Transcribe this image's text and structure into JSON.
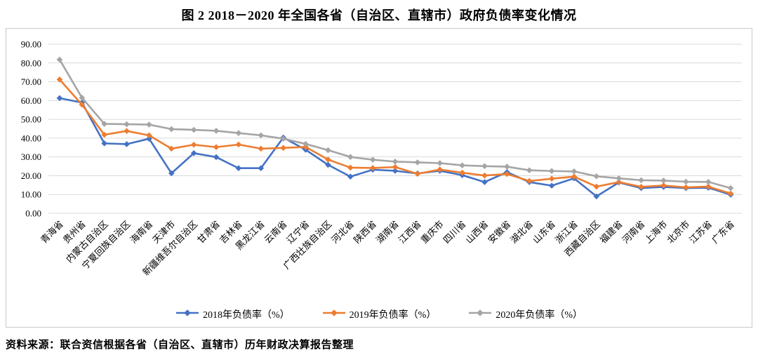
{
  "title": "图 2  2018－2020 年全国各省（自治区、直辖市）政府负债率变化情况",
  "source_note": "资料来源：联合资信根据各省（自治区、直辖市）历年财政决算报告整理",
  "chart_data": {
    "type": "line",
    "marker": "diamond",
    "grid": "horizontal",
    "legend_position": "bottom",
    "ylim": [
      0,
      90
    ],
    "ytick_step": 10,
    "ytick_labels": [
      "0.00",
      "10.00",
      "20.00",
      "30.00",
      "40.00",
      "50.00",
      "60.00",
      "70.00",
      "80.00",
      "90.00"
    ],
    "gridline_color": "#d9d9d9",
    "categories": [
      "青海省",
      "贵州省",
      "内蒙古自治区",
      "宁夏回族自治区",
      "海南省",
      "天津市",
      "新疆维吾尔自治区",
      "甘肃省",
      "吉林省",
      "黑龙江省",
      "云南省",
      "辽宁省",
      "广西壮族自治区",
      "河北省",
      "陕西省",
      "湖南省",
      "江西省",
      "重庆市",
      "四川省",
      "山西省",
      "安徽省",
      "湖北省",
      "山东省",
      "浙江省",
      "西藏自治区",
      "福建省",
      "河南省",
      "上海市",
      "北京市",
      "江苏省",
      "广东省"
    ],
    "series": [
      {
        "name": "2018年负债率（%）",
        "color": "#4472C4",
        "values": [
          61.3,
          58.9,
          37.2,
          36.8,
          39.7,
          21.3,
          32.0,
          29.9,
          24.0,
          24.0,
          40.3,
          33.8,
          25.8,
          19.5,
          23.2,
          22.6,
          21.2,
          22.6,
          20.3,
          16.6,
          21.9,
          16.6,
          14.7,
          18.6,
          9.0,
          16.4,
          13.4,
          14.0,
          13.4,
          13.6,
          9.9
        ]
      },
      {
        "name": "2019年负债率（%）",
        "color": "#ED7D31",
        "values": [
          71.2,
          57.8,
          41.8,
          43.8,
          41.5,
          34.4,
          36.5,
          35.2,
          36.6,
          34.4,
          34.8,
          35.3,
          28.6,
          24.3,
          24.1,
          24.6,
          21.0,
          23.3,
          21.6,
          20.1,
          20.9,
          17.2,
          18.4,
          19.5,
          14.2,
          16.6,
          14.1,
          14.8,
          13.8,
          14.2,
          10.5
        ]
      },
      {
        "name": "2020年负债率（%）",
        "color": "#A5A5A5",
        "values": [
          81.8,
          61.5,
          47.6,
          47.4,
          47.2,
          44.8,
          44.4,
          43.9,
          42.7,
          41.5,
          39.7,
          36.9,
          33.6,
          30.0,
          28.5,
          27.5,
          27.1,
          26.7,
          25.5,
          25.1,
          24.8,
          22.9,
          22.5,
          22.3,
          19.7,
          18.6,
          17.6,
          17.4,
          16.8,
          16.7,
          13.4
        ]
      }
    ]
  }
}
